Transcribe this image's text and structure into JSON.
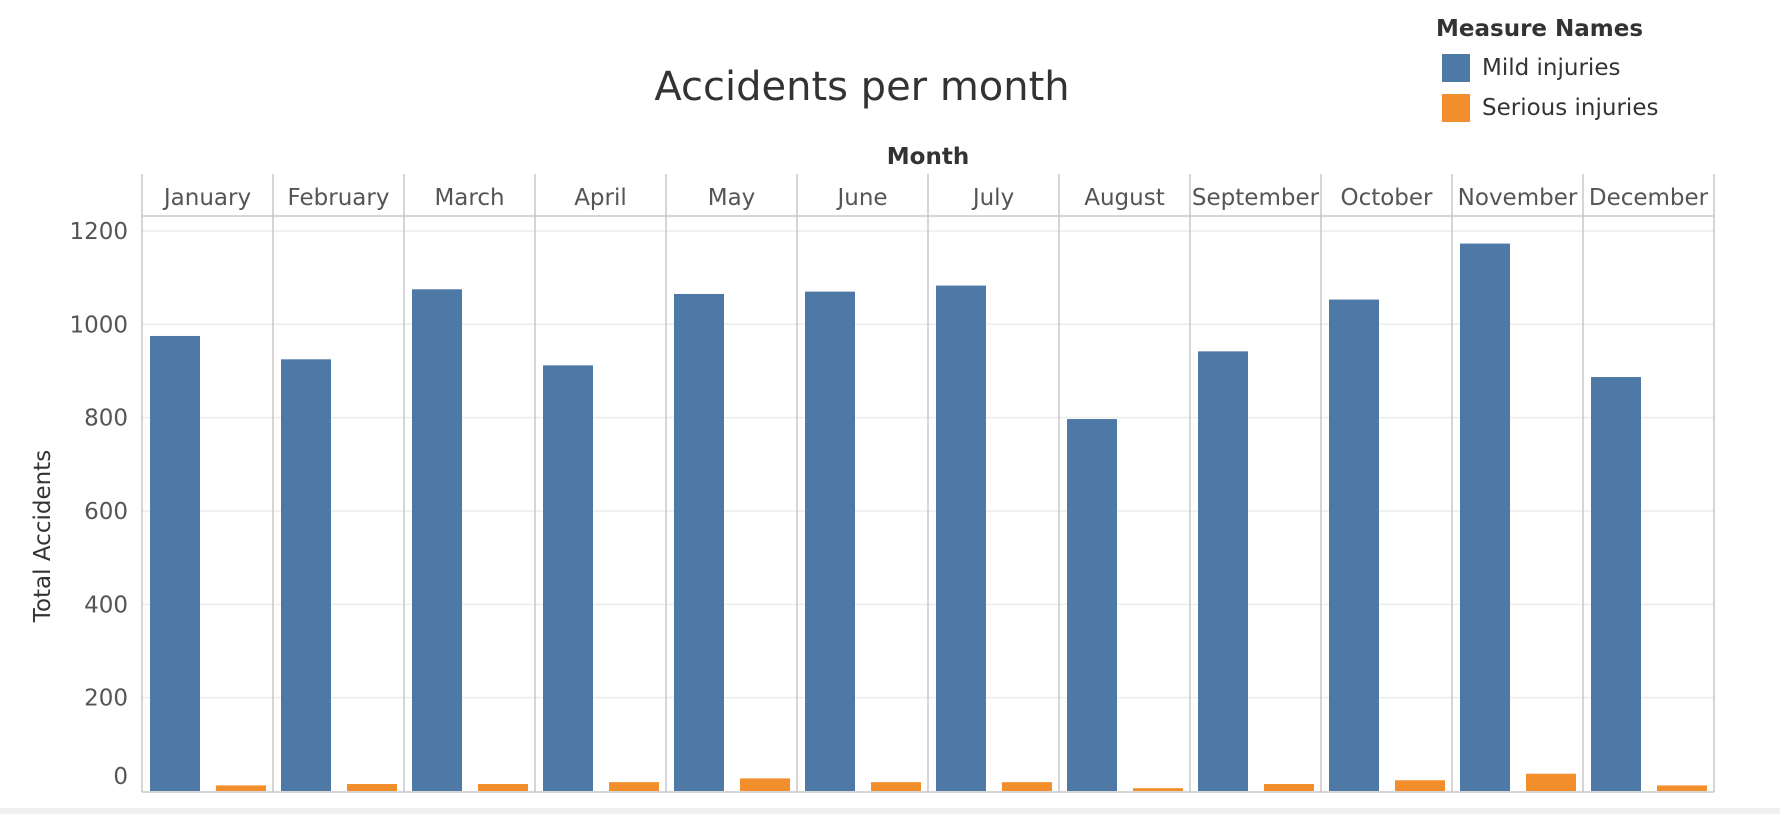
{
  "chart_data": {
    "type": "bar",
    "title": "Accidents per month",
    "column_header": "Month",
    "ylabel": "Total Accidents",
    "ylim": [
      0,
      1270
    ],
    "yticks": [
      0,
      200,
      400,
      600,
      800,
      1000,
      1200
    ],
    "grid": true,
    "legend_title": "Measure Names",
    "legend_position": "top-right",
    "categories": [
      "January",
      "February",
      "March",
      "April",
      "May",
      "June",
      "July",
      "August",
      "September",
      "October",
      "November",
      "December"
    ],
    "series": [
      {
        "name": "Mild injuries",
        "color": "#4e79a7",
        "values": [
          975,
          925,
          1075,
          912,
          1065,
          1070,
          1083,
          797,
          942,
          1053,
          1173,
          887
        ]
      },
      {
        "name": "Serious injuries",
        "color": "#f28e2b",
        "values": [
          12,
          15,
          15,
          19,
          27,
          19,
          19,
          6,
          15,
          23,
          37,
          12
        ]
      }
    ]
  }
}
